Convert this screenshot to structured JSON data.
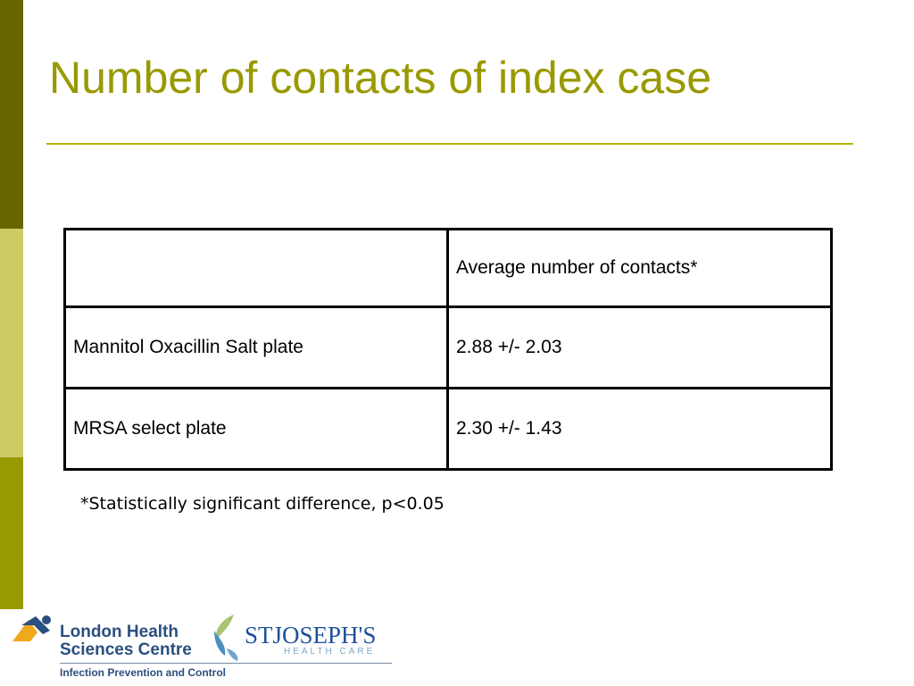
{
  "slide": {
    "title": "Number of contacts of index case",
    "footnote": "*Statistically significant difference, p<0.05"
  },
  "table": {
    "header": [
      "",
      "Average number of contacts*"
    ],
    "rows": [
      [
        "Mannitol Oxacillin Salt plate",
        "2.88 +/- 2.03"
      ],
      [
        "MRSA select plate",
        "2.30 +/- 1.43"
      ]
    ]
  },
  "logos": {
    "lhsc_name": "London Health Sciences Centre",
    "lhsc_sub": "Infection Prevention and Control",
    "stj_name": "STJOSEPH'S",
    "stj_sub": "HEALTH CARE"
  },
  "colors": {
    "accent": "#999900",
    "bar_dark": "#666600",
    "bar_light": "#cccc66",
    "logo_blue": "#2b4f7e"
  }
}
